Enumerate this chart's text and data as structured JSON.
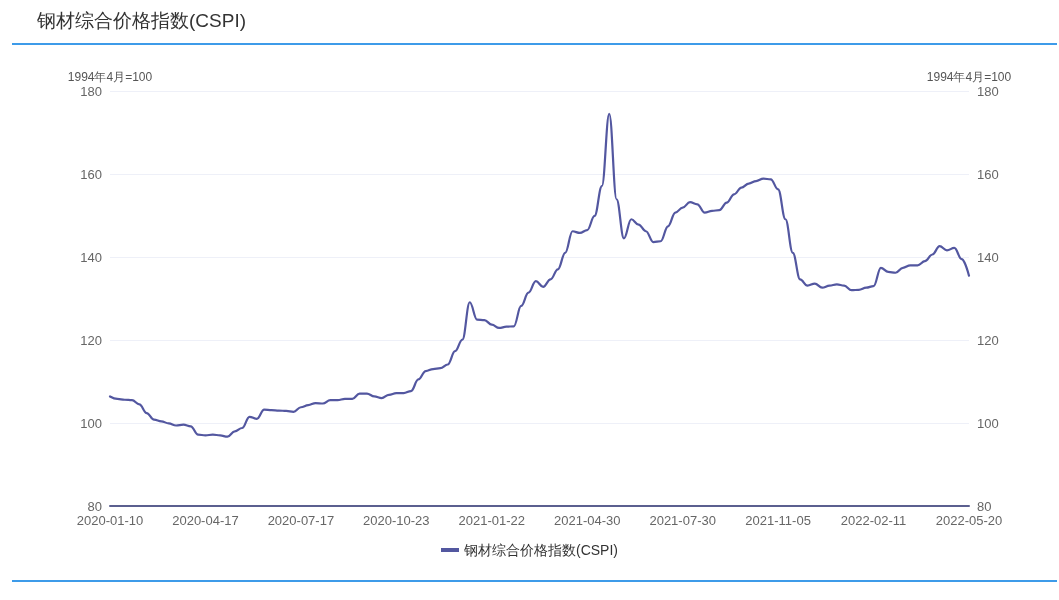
{
  "chart_data": {
    "type": "line",
    "title": "钢材综合价格指数(CSPI)",
    "ylabel": "1994年4月=100",
    "y2label": "1994年4月=100",
    "categories": [
      "2020-01-10",
      null,
      null,
      null,
      null,
      null,
      null,
      null,
      null,
      null,
      null,
      null,
      null,
      "2020-04-17",
      null,
      null,
      null,
      null,
      null,
      null,
      null,
      null,
      null,
      null,
      null,
      null,
      "2020-07-17",
      null,
      null,
      null,
      null,
      null,
      null,
      null,
      null,
      null,
      null,
      null,
      null,
      "2020-10-23",
      null,
      null,
      null,
      null,
      null,
      null,
      null,
      null,
      null,
      null,
      null,
      null,
      "2021-01-22",
      null,
      null,
      null,
      null,
      null,
      null,
      null,
      null,
      null,
      null,
      null,
      null,
      "2021-04-30",
      null,
      null,
      null,
      null,
      null,
      null,
      null,
      null,
      null,
      null,
      null,
      null,
      "2021-07-30",
      null,
      null,
      null,
      null,
      null,
      null,
      null,
      null,
      null,
      null,
      null,
      null,
      "2021-11-05",
      null,
      null,
      null,
      null,
      null,
      null,
      null,
      null,
      null,
      null,
      null,
      null,
      "2022-02-11",
      null,
      null,
      null,
      null,
      null,
      null,
      null,
      null,
      null,
      null,
      null,
      null,
      "2022-05-20"
    ],
    "series": [
      {
        "name": "钢材综合价格指数(CSPI)",
        "color": "#5357a0",
        "values": [
          106.4,
          105.8,
          105.6,
          105.5,
          104.5,
          102.4,
          100.8,
          100.4,
          99.9,
          99.4,
          99.6,
          99.2,
          97.2,
          97.0,
          97.2,
          97.0,
          96.7,
          98.0,
          98.8,
          101.5,
          101.0,
          103.2,
          103.1,
          103.0,
          102.9,
          102.7,
          103.8,
          104.3,
          104.8,
          104.7,
          105.5,
          105.5,
          105.8,
          105.8,
          107.1,
          107.1,
          106.4,
          106.0,
          106.8,
          107.2,
          107.2,
          107.7,
          110.5,
          112.5,
          113.0,
          113.2,
          114.1,
          117.3,
          120.1,
          129.1,
          124.9,
          124.8,
          123.7,
          122.9,
          123.2,
          123.3,
          128.2,
          131.4,
          134.2,
          132.8,
          134.6,
          137.0,
          141.0,
          146.2,
          145.8,
          146.5,
          149.9,
          157.1,
          174.5,
          153.9,
          144.5,
          149.1,
          147.8,
          146.2,
          143.6,
          143.8,
          147.4,
          150.7,
          151.9,
          153.2,
          152.7,
          150.7,
          151.1,
          151.3,
          153.1,
          155.1,
          156.7,
          157.7,
          158.3,
          158.9,
          158.7,
          156.3,
          149.1,
          141.0,
          134.6,
          133.1,
          133.6,
          132.6,
          133.1,
          133.4,
          133.1,
          132.0,
          132.1,
          132.6,
          133.0,
          137.4,
          136.4,
          136.2,
          137.4,
          138.0,
          138.0,
          139.0,
          140.6,
          142.6,
          141.6,
          142.2,
          139.5,
          135.5
        ]
      }
    ],
    "ylim": [
      80,
      180
    ],
    "yticks": [
      80,
      100,
      120,
      140,
      160,
      180
    ],
    "y2lim": [
      80,
      180
    ],
    "y2ticks": [
      80,
      100,
      120,
      140,
      160,
      180
    ],
    "grid": "y",
    "legend": "bottom",
    "marker": "none",
    "line_style": "solid"
  }
}
